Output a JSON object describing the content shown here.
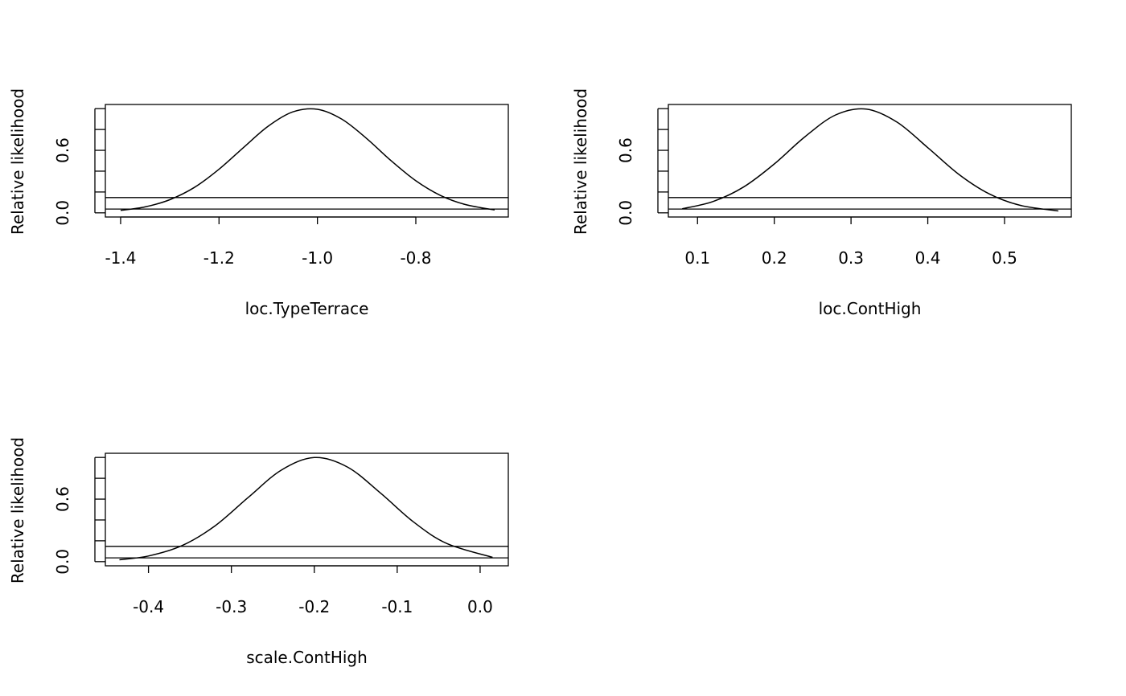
{
  "chart_data": [
    {
      "type": "line",
      "title": "",
      "xlabel": "loc.TypeTerrace",
      "ylabel": "Relative likelihood",
      "xticks": [
        -1.4,
        -1.2,
        -1.0,
        -0.8
      ],
      "xtick_labels": [
        "-1.4",
        "-1.2",
        "-1.0",
        "-0.8"
      ],
      "yticks": [
        0,
        0.2,
        0.4,
        0.6,
        0.8,
        1.0
      ],
      "ytick_labels": {
        "0": "0.0",
        "3": "0.6"
      },
      "xlim": [
        -1.431,
        -0.612
      ],
      "ylim": [
        -0.04,
        1.04
      ],
      "hlines": [
        0.1465,
        0.0362
      ],
      "x": [
        -1.4,
        -1.35,
        -1.3,
        -1.25,
        -1.2,
        -1.15,
        -1.1,
        -1.05,
        -1.0,
        -0.95,
        -0.9,
        -0.85,
        -0.8,
        -0.75,
        -0.7,
        -0.64
      ],
      "y": [
        0.023,
        0.057,
        0.126,
        0.244,
        0.418,
        0.628,
        0.832,
        0.969,
        0.994,
        0.898,
        0.714,
        0.499,
        0.308,
        0.167,
        0.08,
        0.028
      ]
    },
    {
      "type": "line",
      "title": "",
      "xlabel": "loc.ContHigh",
      "ylabel": "Relative likelihood",
      "xticks": [
        0.1,
        0.2,
        0.3,
        0.4,
        0.5
      ],
      "xtick_labels": [
        "0.1",
        "0.2",
        "0.3",
        "0.4",
        "0.5"
      ],
      "yticks": [
        0,
        0.2,
        0.4,
        0.6,
        0.8,
        1.0
      ],
      "ytick_labels": {
        "0": "0.0",
        "3": "0.6"
      },
      "xlim": [
        0.062,
        0.587
      ],
      "ylim": [
        -0.04,
        1.04
      ],
      "hlines": [
        0.1465,
        0.0362
      ],
      "x": [
        0.08,
        0.12,
        0.16,
        0.2,
        0.24,
        0.28,
        0.32,
        0.36,
        0.4,
        0.44,
        0.48,
        0.52,
        0.57
      ],
      "y": [
        0.039,
        0.108,
        0.248,
        0.469,
        0.731,
        0.94,
        0.996,
        0.87,
        0.626,
        0.372,
        0.182,
        0.073,
        0.018
      ]
    },
    {
      "type": "line",
      "title": "",
      "xlabel": "scale.ContHigh",
      "ylabel": "Relative likelihood",
      "xticks": [
        -0.4,
        -0.3,
        -0.2,
        -0.1,
        0.0
      ],
      "xtick_labels": [
        "-0.4",
        "-0.3",
        "-0.2",
        "-0.1",
        "0.0"
      ],
      "yticks": [
        0,
        0.2,
        0.4,
        0.6,
        0.8,
        1.0
      ],
      "ytick_labels": {
        "0": "0.0",
        "3": "0.6"
      },
      "xlim": [
        -0.452,
        0.034
      ],
      "ylim": [
        -0.04,
        1.04
      ],
      "hlines": [
        0.1465,
        0.0362
      ],
      "x": [
        -0.435,
        -0.4,
        -0.36,
        -0.32,
        -0.28,
        -0.24,
        -0.2,
        -0.16,
        -0.12,
        -0.08,
        -0.04,
        0.015
      ],
      "y": [
        0.018,
        0.054,
        0.152,
        0.342,
        0.614,
        0.877,
        0.999,
        0.908,
        0.657,
        0.379,
        0.174,
        0.041
      ]
    }
  ]
}
